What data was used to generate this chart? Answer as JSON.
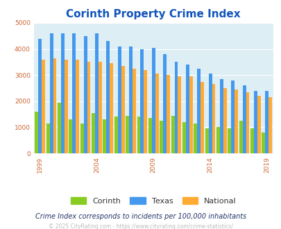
{
  "title": "Corinth Property Crime Index",
  "subtitle": "Crime Index corresponds to incidents per 100,000 inhabitants",
  "copyright": "© 2025 CityRating.com - https://www.cityrating.com/crime-statistics/",
  "years": [
    1999,
    2000,
    2001,
    2002,
    2003,
    2004,
    2005,
    2006,
    2007,
    2008,
    2009,
    2010,
    2011,
    2012,
    2013,
    2014,
    2015,
    2016,
    2017,
    2018,
    2019,
    2020
  ],
  "corinth": [
    1600,
    1150,
    1950,
    1300,
    1150,
    1550,
    1300,
    1400,
    1450,
    1400,
    1350,
    1250,
    1450,
    1200,
    1150,
    950,
    1000,
    950,
    1250,
    950,
    800,
    null
  ],
  "texas": [
    4400,
    4600,
    4600,
    4600,
    4500,
    4600,
    4300,
    4100,
    4100,
    4000,
    4050,
    3800,
    3500,
    3400,
    3250,
    3050,
    2850,
    2800,
    2600,
    2400,
    2400,
    null
  ],
  "national": [
    3600,
    3650,
    3600,
    3600,
    3500,
    3500,
    3450,
    3350,
    3250,
    3200,
    3050,
    3000,
    2950,
    2950,
    2750,
    2650,
    2500,
    2450,
    2350,
    2200,
    2150,
    null
  ],
  "corinth_color": "#88cc22",
  "texas_color": "#4499ee",
  "national_color": "#ffaa33",
  "plot_bg": "#deeef5",
  "ylim": [
    0,
    5000
  ],
  "yticks": [
    0,
    1000,
    2000,
    3000,
    4000,
    5000
  ],
  "title_color": "#1155bb",
  "subtitle_color": "#223366",
  "copyright_color": "#bbbbbb",
  "tick_color": "#cc6633",
  "shown_years": [
    1999,
    2004,
    2009,
    2014,
    2019
  ]
}
